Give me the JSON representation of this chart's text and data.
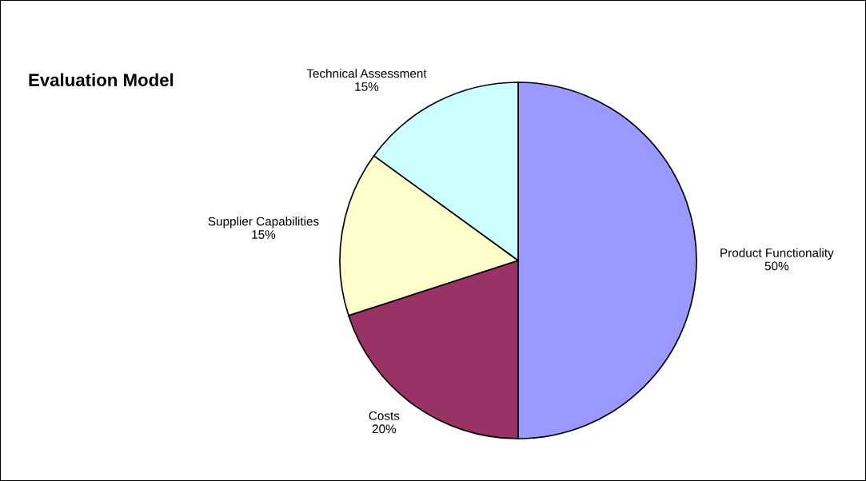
{
  "chart_data": {
    "type": "pie",
    "title": "Evaluation Model",
    "categories": [
      "Product Functionality",
      "Costs",
      "Supplier Capabilities",
      "Technical Assessment"
    ],
    "values": [
      50,
      20,
      15,
      15
    ],
    "value_labels": [
      "50%",
      "20%",
      "15%",
      "15%"
    ],
    "colors": [
      "#9999ff",
      "#993366",
      "#ffffcc",
      "#ccffff"
    ]
  }
}
